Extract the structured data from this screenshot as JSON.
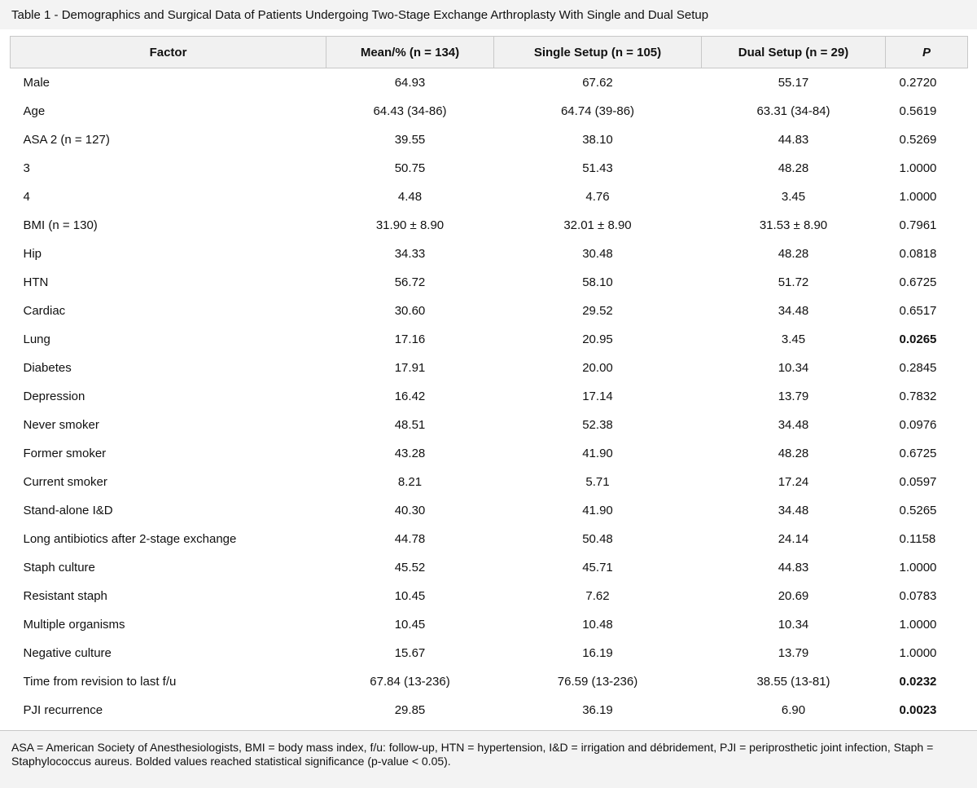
{
  "caption": "Table 1 - Demographics and Surgical Data of Patients Undergoing Two-Stage Exchange Arthroplasty With Single and Dual Setup",
  "columns": [
    "Factor",
    "Mean/% (n = 134)",
    "Single  Setup (n = 105)",
    "Dual Setup (n = 29)",
    "P"
  ],
  "rows": [
    {
      "factor": "Male",
      "mean": "64.93",
      "single": "67.62",
      "dual": "55.17",
      "p": "0.2720",
      "significant": false
    },
    {
      "factor": "Age",
      "mean": "64.43 (34-86)",
      "single": "64.74 (39-86)",
      "dual": "63.31 (34-84)",
      "p": "0.5619",
      "significant": false
    },
    {
      "factor": "ASA 2 (n = 127)",
      "mean": "39.55",
      "single": "38.10",
      "dual": "44.83",
      "p": "0.5269",
      "significant": false
    },
    {
      "factor": "3",
      "mean": "50.75",
      "single": "51.43",
      "dual": "48.28",
      "p": "1.0000",
      "significant": false
    },
    {
      "factor": "4",
      "mean": "4.48",
      "single": "4.76",
      "dual": "3.45",
      "p": "1.0000",
      "significant": false
    },
    {
      "factor": "BMI (n = 130)",
      "mean": "31.90 ± 8.90",
      "single": "32.01 ± 8.90",
      "dual": "31.53 ± 8.90",
      "p": "0.7961",
      "significant": false
    },
    {
      "factor": "Hip",
      "mean": "34.33",
      "single": "30.48",
      "dual": "48.28",
      "p": "0.0818",
      "significant": false
    },
    {
      "factor": "HTN",
      "mean": "56.72",
      "single": "58.10",
      "dual": "51.72",
      "p": "0.6725",
      "significant": false
    },
    {
      "factor": "Cardiac",
      "mean": "30.60",
      "single": "29.52",
      "dual": "34.48",
      "p": "0.6517",
      "significant": false
    },
    {
      "factor": "Lung",
      "mean": "17.16",
      "single": "20.95",
      "dual": "3.45",
      "p": "0.0265",
      "significant": true
    },
    {
      "factor": "Diabetes",
      "mean": "17.91",
      "single": "20.00",
      "dual": "10.34",
      "p": "0.2845",
      "significant": false
    },
    {
      "factor": "Depression",
      "mean": "16.42",
      "single": "17.14",
      "dual": "13.79",
      "p": "0.7832",
      "significant": false
    },
    {
      "factor": "Never smoker",
      "mean": "48.51",
      "single": "52.38",
      "dual": "34.48",
      "p": "0.0976",
      "significant": false
    },
    {
      "factor": "Former smoker",
      "mean": "43.28",
      "single": "41.90",
      "dual": "48.28",
      "p": "0.6725",
      "significant": false
    },
    {
      "factor": "Current smoker",
      "mean": "8.21",
      "single": "5.71",
      "dual": "17.24",
      "p": "0.0597",
      "significant": false
    },
    {
      "factor": "Stand-alone I&D",
      "mean": "40.30",
      "single": "41.90",
      "dual": "34.48",
      "p": "0.5265",
      "significant": false
    },
    {
      "factor": "Long antibiotics after 2-stage exchange",
      "mean": "44.78",
      "single": "50.48",
      "dual": "24.14",
      "p": "0.1158",
      "significant": false
    },
    {
      "factor": "Staph culture",
      "mean": "45.52",
      "single": "45.71",
      "dual": "44.83",
      "p": "1.0000",
      "significant": false
    },
    {
      "factor": "Resistant staph",
      "mean": "10.45",
      "single": "7.62",
      "dual": "20.69",
      "p": "0.0783",
      "significant": false
    },
    {
      "factor": "Multiple organisms",
      "mean": "10.45",
      "single": "10.48",
      "dual": "10.34",
      "p": "1.0000",
      "significant": false
    },
    {
      "factor": "Negative culture",
      "mean": "15.67",
      "single": "16.19",
      "dual": "13.79",
      "p": "1.0000",
      "significant": false
    },
    {
      "factor": "Time from revision to last f/u",
      "mean": "67.84 (13-236)",
      "single": "76.59 (13-236)",
      "dual": "38.55 (13-81)",
      "p": "0.0232",
      "significant": true
    },
    {
      "factor": "PJI recurrence",
      "mean": "29.85",
      "single": "36.19",
      "dual": "6.90",
      "p": "0.0023",
      "significant": true
    }
  ],
  "footnote": "ASA = American Society of Anesthesiologists, BMI = body mass index, f/u: follow-up, HTN = hypertension, I&D = irrigation and débridement, PJI = periprosthetic joint infection, Staph = Staphylococcus aureus. Bolded values reached statistical significance (p-value < 0.05)."
}
